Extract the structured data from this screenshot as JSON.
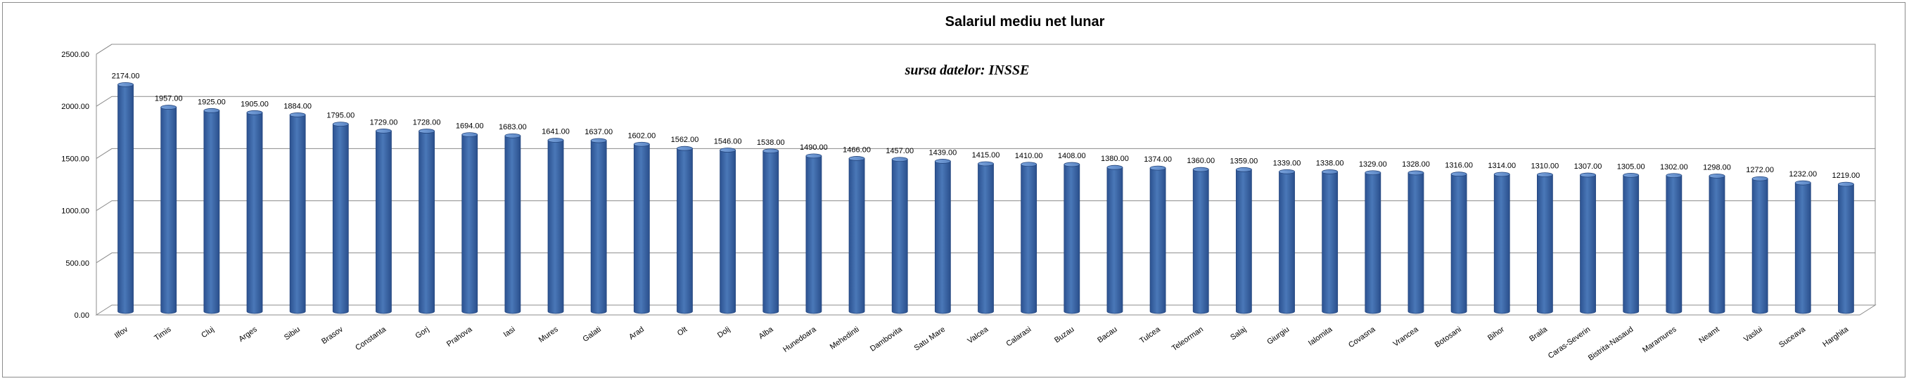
{
  "chart_data": {
    "type": "bar",
    "title": "Salariul mediu net lunar",
    "annotation": "sursa datelor: INSSE",
    "xlabel": "",
    "ylabel": "",
    "ylim": [
      0,
      2500
    ],
    "yticks": [
      0,
      500,
      1000,
      1500,
      2000,
      2500
    ],
    "ytick_labels": [
      "0.00",
      "500.00",
      "1000.00",
      "1500.00",
      "2000.00",
      "2500.00"
    ],
    "grid": true,
    "legend": "none",
    "bar_color": "#4a78b8",
    "categories": [
      "Ilfov",
      "Timis",
      "Cluj",
      "Arges",
      "Sibiu",
      "Brasov",
      "Constanta",
      "Gorj",
      "Prahova",
      "Iasi",
      "Mures",
      "Galati",
      "Arad",
      "Olt",
      "Dolj",
      "Alba",
      "Hunedoara",
      "Mehedinti",
      "Dambovita",
      "Satu Mare",
      "Valcea",
      "Calarasi",
      "Buzau",
      "Bacau",
      "Tulcea",
      "Teleorman",
      "Salaj",
      "Giurgiu",
      "Ialomita",
      "Covasna",
      "Vrancea",
      "Botosani",
      "Bihor",
      "Braila",
      "Caras-Severin",
      "Bistrita-Nasaud",
      "Maramures",
      "Neamt",
      "Vaslui",
      "Suceava",
      "Harghita"
    ],
    "values": [
      2174,
      1957,
      1925,
      1905,
      1884,
      1795,
      1729,
      1728,
      1694,
      1683,
      1641,
      1637,
      1602,
      1562,
      1546,
      1538,
      1490,
      1466,
      1457,
      1439,
      1415,
      1410,
      1408,
      1380,
      1374,
      1360,
      1359,
      1339,
      1338,
      1329,
      1328,
      1316,
      1314,
      1310,
      1307,
      1305,
      1302,
      1298,
      1272,
      1232,
      1219
    ],
    "value_labels": [
      "2174.00",
      "1957.00",
      "1925.00",
      "1905.00",
      "1884.00",
      "1795.00",
      "1729.00",
      "1728.00",
      "1694.00",
      "1683.00",
      "1641.00",
      "1637.00",
      "1602.00",
      "1562.00",
      "1546.00",
      "1538.00",
      "1490.00",
      "1466.00",
      "1457.00",
      "1439.00",
      "1415.00",
      "1410.00",
      "1408.00",
      "1380.00",
      "1374.00",
      "1360.00",
      "1359.00",
      "1339.00",
      "1338.00",
      "1329.00",
      "1328.00",
      "1316.00",
      "1314.00",
      "1310.00",
      "1307.00",
      "1305.00",
      "1302.00",
      "1298.00",
      "1272.00",
      "1232.00",
      "1219.00"
    ]
  }
}
